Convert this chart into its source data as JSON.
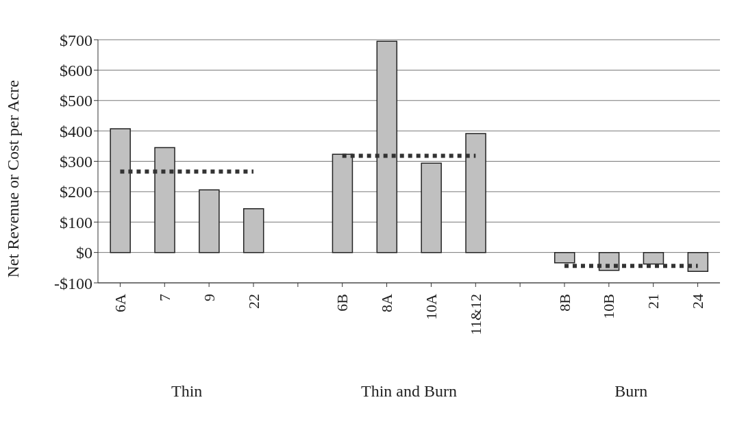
{
  "chart_data": {
    "type": "bar",
    "ylabel": "Net Revenue or Cost per Acre",
    "categories": [
      "6A",
      "7",
      "9",
      "22",
      null,
      "6B",
      "8A",
      "10A",
      "11&12",
      null,
      "8B",
      "10B",
      "21",
      "24"
    ],
    "series": [
      {
        "color": "#c0c0c0",
        "values": [
          407,
          345,
          206,
          144,
          null,
          323,
          695,
          294,
          391,
          null,
          -34,
          -59,
          -38,
          -62
        ]
      },
      {
        "type": "line",
        "color": "#333333",
        "line_style": "dotted",
        "marker": "none",
        "values": [
          266,
          266,
          266,
          266,
          null,
          318,
          318,
          318,
          318,
          null,
          -44,
          -44,
          -44,
          -44
        ]
      }
    ],
    "ylim": [
      -100,
      700
    ],
    "yticks": [
      {
        "value": -100,
        "label": "-$100"
      },
      {
        "value": 0,
        "label": "$0"
      },
      {
        "value": 100,
        "label": "$100"
      },
      {
        "value": 200,
        "label": "$200"
      },
      {
        "value": 300,
        "label": "$300"
      },
      {
        "value": 400,
        "label": "$400"
      },
      {
        "value": 500,
        "label": "$500"
      },
      {
        "value": 600,
        "label": "$600"
      },
      {
        "value": 700,
        "label": "$700"
      }
    ],
    "grid": "y",
    "annotations": [
      "Thin",
      "Thin and Burn",
      "Burn"
    ]
  }
}
